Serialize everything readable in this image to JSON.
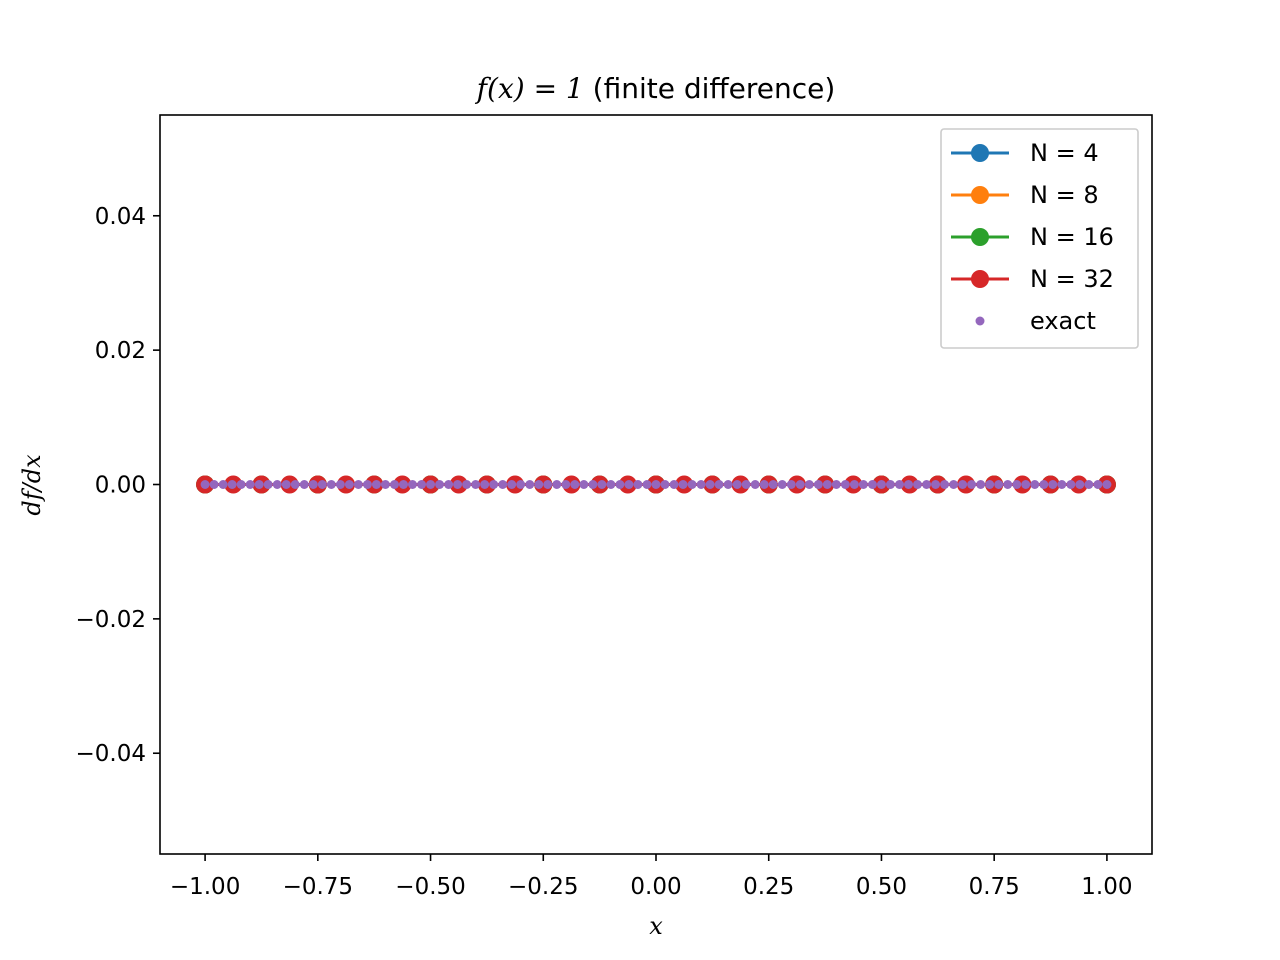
{
  "chart_data": {
    "type": "line",
    "title": "f(x) = 1 (finite difference)",
    "title_parts": {
      "math": "f(x) = 1",
      "text": " (finite difference)"
    },
    "xlabel": "x",
    "ylabel": "df/dx",
    "xlim": [
      -1.1,
      1.1
    ],
    "ylim": [
      -0.055,
      0.055
    ],
    "xticks": [
      -1.0,
      -0.75,
      -0.5,
      -0.25,
      0.0,
      0.25,
      0.5,
      0.75,
      1.0
    ],
    "xtick_labels": [
      "−1.00",
      "−0.75",
      "−0.50",
      "−0.25",
      "0.00",
      "0.25",
      "0.50",
      "0.75",
      "1.00"
    ],
    "yticks": [
      -0.04,
      -0.02,
      0.0,
      0.02,
      0.04
    ],
    "ytick_labels": [
      "−0.04",
      "−0.02",
      "0.00",
      "0.02",
      "0.04"
    ],
    "grid": false,
    "legend_position": "top-right",
    "series": [
      {
        "name": "N = 4",
        "color": "#1f77b4",
        "style": "line-marker",
        "n": 4,
        "y": 0
      },
      {
        "name": "N = 8",
        "color": "#ff7f0e",
        "style": "line-marker",
        "n": 8,
        "y": 0
      },
      {
        "name": "N = 16",
        "color": "#2ca02c",
        "style": "line-marker",
        "n": 16,
        "y": 0
      },
      {
        "name": "N = 32",
        "color": "#d62728",
        "style": "line-marker",
        "n": 32,
        "y": 0
      },
      {
        "name": "exact",
        "color": "#9467bd",
        "style": "dots",
        "n": 100,
        "y": 0
      }
    ]
  }
}
